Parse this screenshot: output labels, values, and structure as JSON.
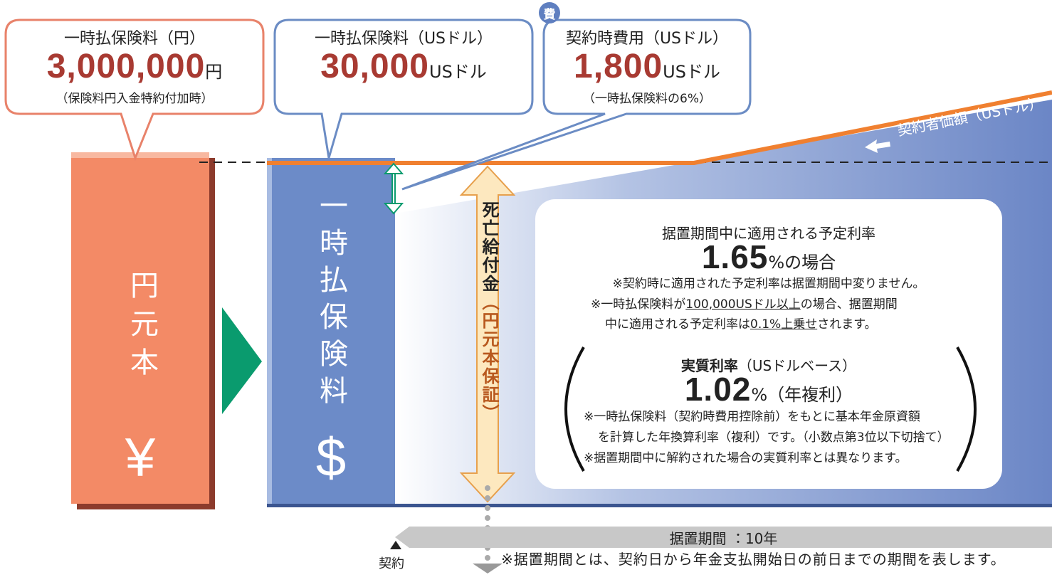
{
  "boxes": [
    {
      "title": "一時払保険料（円）",
      "amount": "3,000,000",
      "unit": "円",
      "note": "（保険料円入金特約付加時）"
    },
    {
      "title": "一時払保険料（USドル）",
      "amount": "30,000",
      "unit": "USドル"
    },
    {
      "badge": "費",
      "title": "契約時費用（USドル）",
      "amount": "1,800",
      "unit": "USドル",
      "note": "（一時払保険料の6%）"
    }
  ],
  "contract_value_label": "契約者価額（USドル）",
  "yen_column": {
    "label": "円元本",
    "symbol": "¥"
  },
  "usd_column": {
    "label": "一時払保険料",
    "symbol": "$"
  },
  "death_benefit": {
    "label": "死亡給付金",
    "note": "（円元本保証）"
  },
  "info": {
    "heading": "据置期間中に適用される予定利率",
    "rate": "1.65",
    "rate_suffix": "%の場合",
    "note1": "※契約時に適用された予定利率は据置期間中変りません。",
    "note2": [
      "※一時払保険料が",
      "100,000USドル以上",
      "の場合、据置期間",
      "中に適用される予定利率は",
      "0.1%上乗せ",
      "されます。"
    ],
    "real_rate_title": "実質利率",
    "real_rate_basis": "（USドルベース）",
    "real_rate": "1.02",
    "real_rate_suffix": "%（年複利）",
    "real_notes": [
      "※一時払保険料（契約時費用控除前）をもとに基本年金原資額",
      "を計算した年換算利率（複利）です。（小数点第3位以下切捨て）",
      "※据置期間中に解約された場合の実質利率とは異なります。"
    ]
  },
  "timeline": {
    "label": "据置期間 ：10年",
    "start": "契約",
    "footnote": "※据置期間とは、契約日から年金支払開始日の前日までの期間を表します。"
  }
}
